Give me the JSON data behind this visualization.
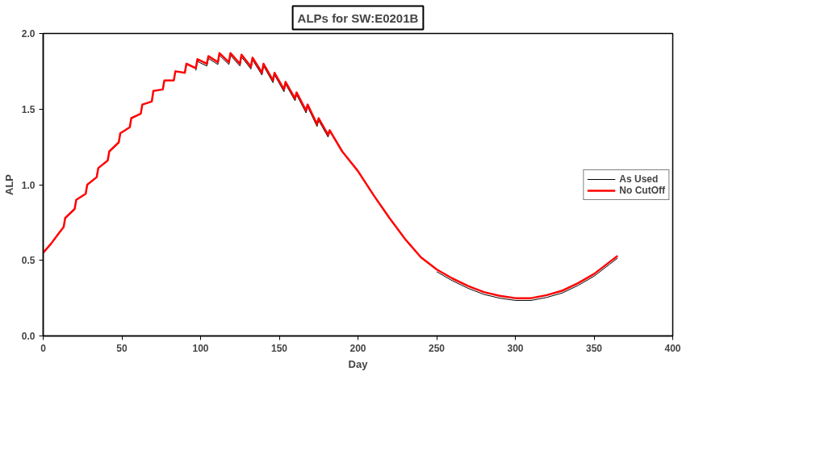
{
  "chart_data": {
    "type": "line",
    "title": "ALPs for SW:E0201B",
    "xlabel": "Day",
    "ylabel": "ALP",
    "x": [
      0,
      5,
      10,
      13,
      14,
      20,
      21,
      27,
      28,
      34,
      35,
      41,
      42,
      48,
      49,
      55,
      56,
      62,
      63,
      69,
      70,
      76,
      77,
      83,
      84,
      90,
      91,
      97,
      98,
      104,
      105,
      111,
      112,
      118,
      119,
      125,
      126,
      132,
      133,
      139,
      140,
      146,
      147,
      153,
      154,
      160,
      161,
      167,
      168,
      174,
      175,
      181,
      182,
      190,
      200,
      210,
      220,
      230,
      240,
      250,
      260,
      270,
      280,
      290,
      300,
      310,
      320,
      330,
      340,
      350,
      360,
      365
    ],
    "series": [
      {
        "name": "As Used",
        "color": "#000000",
        "values": [
          null,
          null,
          null,
          null,
          null,
          null,
          null,
          null,
          null,
          null,
          null,
          null,
          null,
          null,
          null,
          null,
          null,
          null,
          null,
          null,
          null,
          null,
          null,
          null,
          null,
          null,
          null,
          1.755,
          1.815,
          1.785,
          1.835,
          1.795,
          1.855,
          1.795,
          1.855,
          1.785,
          1.845,
          1.765,
          1.825,
          1.725,
          1.785,
          1.675,
          1.725,
          1.615,
          1.665,
          1.555,
          1.595,
          1.475,
          1.515,
          1.385,
          1.425,
          1.315,
          1.345,
          null,
          null,
          null,
          null,
          null,
          null,
          0.425,
          0.365,
          0.315,
          0.275,
          0.25,
          0.235,
          0.235,
          0.255,
          0.285,
          0.335,
          0.395,
          0.475,
          0.515
        ]
      },
      {
        "name": "No CutOff",
        "color": "#ff0000",
        "values": [
          0.55,
          0.61,
          0.68,
          0.72,
          0.78,
          0.84,
          0.9,
          0.94,
          1.0,
          1.05,
          1.11,
          1.16,
          1.22,
          1.28,
          1.34,
          1.38,
          1.44,
          1.47,
          1.53,
          1.55,
          1.62,
          1.63,
          1.69,
          1.69,
          1.75,
          1.74,
          1.8,
          1.77,
          1.83,
          1.8,
          1.85,
          1.81,
          1.87,
          1.81,
          1.87,
          1.8,
          1.86,
          1.78,
          1.84,
          1.74,
          1.8,
          1.69,
          1.74,
          1.63,
          1.68,
          1.57,
          1.61,
          1.49,
          1.53,
          1.4,
          1.44,
          1.33,
          1.36,
          1.22,
          1.09,
          0.93,
          0.78,
          0.64,
          0.52,
          0.44,
          0.38,
          0.33,
          0.29,
          0.265,
          0.25,
          0.25,
          0.27,
          0.3,
          0.35,
          0.41,
          0.49,
          0.53
        ]
      }
    ],
    "xlim": [
      0,
      400
    ],
    "xticks": [
      0,
      50,
      100,
      150,
      200,
      250,
      300,
      350,
      400
    ],
    "ylim": [
      0.0,
      2.0
    ],
    "yticks": [
      {
        "value": 0,
        "label": "0.0"
      },
      {
        "value": 0.5,
        "label": "0.5"
      },
      {
        "value": 1,
        "label": "1.0"
      },
      {
        "value": 1.5,
        "label": "1.5"
      },
      {
        "value": 2,
        "label": "2.0"
      }
    ],
    "grid": false,
    "legend": "right",
    "line_style": "solid"
  }
}
